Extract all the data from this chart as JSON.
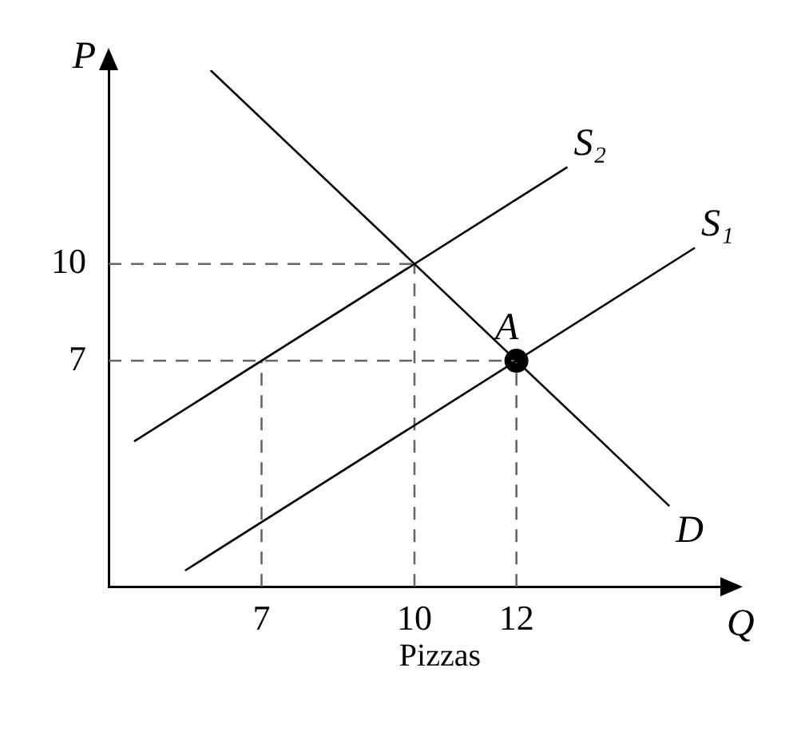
{
  "chart_data": {
    "type": "line",
    "xlabel": "Q",
    "ylabel": "P",
    "annotations": [
      "Pizzas"
    ],
    "xlim": [
      4,
      16
    ],
    "ylim": [
      0,
      16
    ],
    "xticks": [
      7,
      10,
      12
    ],
    "yticks": [
      7,
      10
    ],
    "grid": false,
    "legend": false,
    "series": [
      {
        "name": "S₂",
        "color": "#000000",
        "x": [
          4.5,
          13
        ],
        "values": [
          4.5,
          13
        ],
        "marker": "none",
        "line_style": "solid"
      },
      {
        "name": "S₁",
        "color": "#000000",
        "x": [
          5.5,
          15.5
        ],
        "values": [
          0.5,
          10.5
        ],
        "marker": "none",
        "line_style": "solid"
      },
      {
        "name": "D",
        "color": "#000000",
        "x": [
          6,
          15
        ],
        "values": [
          16,
          2.5
        ],
        "marker": "none",
        "line_style": "solid"
      },
      {
        "color": "#666666",
        "x": [
          4,
          10
        ],
        "values": [
          10,
          10
        ],
        "marker": "none",
        "line_style": "dashed"
      },
      {
        "color": "#666666",
        "x": [
          4,
          12
        ],
        "values": [
          7,
          7
        ],
        "marker": "none",
        "line_style": "dashed"
      },
      {
        "color": "#666666",
        "x": [
          7,
          7
        ],
        "values": [
          0,
          7
        ],
        "marker": "none",
        "line_style": "dashed"
      },
      {
        "color": "#666666",
        "x": [
          10,
          10
        ],
        "values": [
          0,
          10
        ],
        "marker": "none",
        "line_style": "dashed"
      },
      {
        "color": "#666666",
        "x": [
          12,
          12
        ],
        "values": [
          0,
          7
        ],
        "marker": "none",
        "line_style": "dashed"
      },
      {
        "type": "scatter",
        "name": "A",
        "color": "#000000",
        "x": [
          12
        ],
        "values": [
          7
        ],
        "marker": "circle"
      }
    ]
  }
}
